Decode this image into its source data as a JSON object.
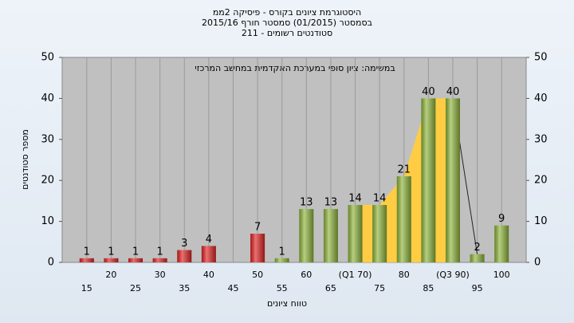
{
  "chart_data": {
    "type": "bar",
    "title": "היסטוגרמת ציונים בקורס - פיסיקה 2ממ",
    "subtitle": "בסמסטר  (01/2015)  סמסטר חורף 2015/16",
    "subtitle2": "211 - סטודנטים רשומים",
    "annotation": "במשימה: ציון סופי במערכת האקדמית במחשב המרכזי",
    "x_label": "טווח ציונים",
    "y_label": "מספר סטודנטים",
    "categories": [
      "15",
      "20",
      "25",
      "30",
      "35",
      "40",
      "45",
      "50",
      "55",
      "60",
      "65",
      "(Q1 70)",
      "75",
      "80",
      "85",
      "(Q3 90)",
      "95",
      "100"
    ],
    "values": [
      1,
      1,
      1,
      1,
      3,
      4,
      0,
      7,
      1,
      13,
      13,
      14,
      14,
      21,
      40,
      40,
      2,
      9
    ],
    "colors": [
      "#e02424",
      "#e02424",
      "#e02424",
      "#e02424",
      "#e02424",
      "#e02424",
      "#e02424",
      "#e02424",
      "#8fb53c",
      "#8fb53c",
      "#8fb53c",
      "#8fb53c",
      "#8fb53c",
      "#8fb53c",
      "#8fb53c",
      "#8fb53c",
      "#8fb53c",
      "#8fb53c"
    ],
    "ylim": [
      0,
      50
    ],
    "yticks": [
      0,
      10,
      20,
      30,
      40,
      50
    ],
    "grid": true
  }
}
